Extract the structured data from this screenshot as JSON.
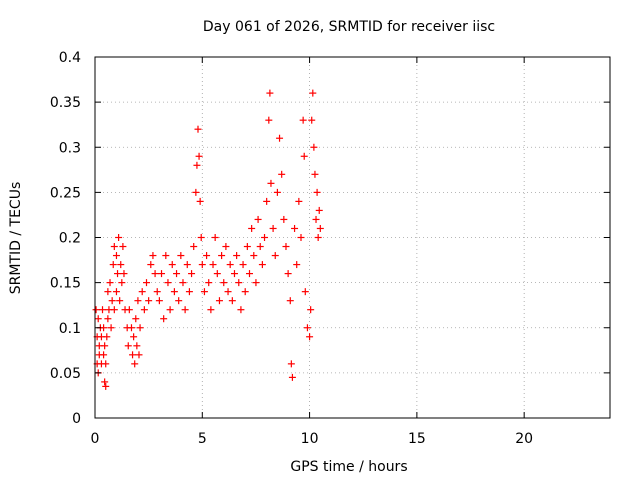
{
  "chart_data": {
    "type": "scatter",
    "title": "Day 061 of 2026, SRMTID for receiver iisc",
    "xlabel": "GPS time / hours",
    "ylabel": "SRMTID / TECUs",
    "xlim": [
      0,
      24
    ],
    "ylim": [
      0,
      0.4
    ],
    "grid": true,
    "marker": "+",
    "color": "#ff0000",
    "x_ticks": [
      0,
      5,
      10,
      15,
      20
    ],
    "x_tick_labels": [
      "0",
      "5",
      "10",
      "15",
      "20"
    ],
    "y_ticks": [
      0,
      0.05,
      0.1,
      0.15,
      0.2,
      0.25,
      0.3,
      0.35,
      0.4
    ],
    "y_tick_labels": [
      "0",
      "0.05",
      "0.1",
      "0.15",
      "0.2",
      "0.25",
      "0.3",
      "0.35",
      "0.4"
    ],
    "series": [
      {
        "name": "SRMTID",
        "points": [
          [
            0.05,
            0.12
          ],
          [
            0.1,
            0.06
          ],
          [
            0.1,
            0.09
          ],
          [
            0.15,
            0.05
          ],
          [
            0.15,
            0.11
          ],
          [
            0.2,
            0.07
          ],
          [
            0.2,
            0.08
          ],
          [
            0.25,
            0.1
          ],
          [
            0.3,
            0.06
          ],
          [
            0.3,
            0.09
          ],
          [
            0.35,
            0.12
          ],
          [
            0.4,
            0.07
          ],
          [
            0.4,
            0.1
          ],
          [
            0.45,
            0.04
          ],
          [
            0.45,
            0.08
          ],
          [
            0.5,
            0.035
          ],
          [
            0.5,
            0.06
          ],
          [
            0.55,
            0.09
          ],
          [
            0.6,
            0.11
          ],
          [
            0.6,
            0.14
          ],
          [
            0.65,
            0.12
          ],
          [
            0.7,
            0.15
          ],
          [
            0.75,
            0.1
          ],
          [
            0.8,
            0.13
          ],
          [
            0.85,
            0.17
          ],
          [
            0.9,
            0.12
          ],
          [
            0.9,
            0.19
          ],
          [
            1.0,
            0.14
          ],
          [
            1.0,
            0.18
          ],
          [
            1.05,
            0.16
          ],
          [
            1.1,
            0.2
          ],
          [
            1.15,
            0.13
          ],
          [
            1.2,
            0.17
          ],
          [
            1.25,
            0.15
          ],
          [
            1.3,
            0.19
          ],
          [
            1.35,
            0.16
          ],
          [
            1.4,
            0.12
          ],
          [
            1.5,
            0.1
          ],
          [
            1.55,
            0.08
          ],
          [
            1.6,
            0.12
          ],
          [
            1.7,
            0.1
          ],
          [
            1.75,
            0.07
          ],
          [
            1.8,
            0.09
          ],
          [
            1.85,
            0.06
          ],
          [
            1.9,
            0.11
          ],
          [
            1.95,
            0.08
          ],
          [
            2.0,
            0.13
          ],
          [
            2.05,
            0.07
          ],
          [
            2.1,
            0.1
          ],
          [
            2.2,
            0.14
          ],
          [
            2.3,
            0.12
          ],
          [
            2.4,
            0.15
          ],
          [
            2.5,
            0.13
          ],
          [
            2.6,
            0.17
          ],
          [
            2.7,
            0.18
          ],
          [
            2.8,
            0.16
          ],
          [
            2.9,
            0.14
          ],
          [
            3.0,
            0.13
          ],
          [
            3.1,
            0.16
          ],
          [
            3.2,
            0.11
          ],
          [
            3.3,
            0.18
          ],
          [
            3.4,
            0.15
          ],
          [
            3.5,
            0.12
          ],
          [
            3.6,
            0.17
          ],
          [
            3.7,
            0.14
          ],
          [
            3.8,
            0.16
          ],
          [
            3.9,
            0.13
          ],
          [
            4.0,
            0.18
          ],
          [
            4.1,
            0.15
          ],
          [
            4.2,
            0.12
          ],
          [
            4.3,
            0.17
          ],
          [
            4.4,
            0.14
          ],
          [
            4.5,
            0.16
          ],
          [
            4.6,
            0.19
          ],
          [
            4.7,
            0.25
          ],
          [
            4.75,
            0.28
          ],
          [
            4.8,
            0.32
          ],
          [
            4.85,
            0.29
          ],
          [
            4.9,
            0.24
          ],
          [
            4.95,
            0.2
          ],
          [
            5.0,
            0.17
          ],
          [
            5.1,
            0.14
          ],
          [
            5.2,
            0.18
          ],
          [
            5.3,
            0.15
          ],
          [
            5.4,
            0.12
          ],
          [
            5.5,
            0.17
          ],
          [
            5.6,
            0.2
          ],
          [
            5.7,
            0.16
          ],
          [
            5.8,
            0.13
          ],
          [
            5.9,
            0.18
          ],
          [
            6.0,
            0.15
          ],
          [
            6.1,
            0.19
          ],
          [
            6.2,
            0.14
          ],
          [
            6.3,
            0.17
          ],
          [
            6.4,
            0.13
          ],
          [
            6.5,
            0.16
          ],
          [
            6.6,
            0.18
          ],
          [
            6.7,
            0.15
          ],
          [
            6.8,
            0.12
          ],
          [
            6.9,
            0.17
          ],
          [
            7.0,
            0.14
          ],
          [
            7.1,
            0.19
          ],
          [
            7.2,
            0.16
          ],
          [
            7.3,
            0.21
          ],
          [
            7.4,
            0.18
          ],
          [
            7.5,
            0.15
          ],
          [
            7.6,
            0.22
          ],
          [
            7.7,
            0.19
          ],
          [
            7.8,
            0.17
          ],
          [
            7.9,
            0.2
          ],
          [
            8.0,
            0.24
          ],
          [
            8.1,
            0.33
          ],
          [
            8.15,
            0.36
          ],
          [
            8.2,
            0.26
          ],
          [
            8.3,
            0.21
          ],
          [
            8.4,
            0.18
          ],
          [
            8.5,
            0.25
          ],
          [
            8.6,
            0.31
          ],
          [
            8.7,
            0.27
          ],
          [
            8.8,
            0.22
          ],
          [
            8.9,
            0.19
          ],
          [
            9.0,
            0.16
          ],
          [
            9.1,
            0.13
          ],
          [
            9.15,
            0.06
          ],
          [
            9.2,
            0.045
          ],
          [
            9.3,
            0.21
          ],
          [
            9.4,
            0.17
          ],
          [
            9.5,
            0.24
          ],
          [
            9.6,
            0.2
          ],
          [
            9.7,
            0.33
          ],
          [
            9.75,
            0.29
          ],
          [
            9.8,
            0.14
          ],
          [
            9.9,
            0.1
          ],
          [
            10.0,
            0.09
          ],
          [
            10.05,
            0.12
          ],
          [
            10.1,
            0.33
          ],
          [
            10.15,
            0.36
          ],
          [
            10.2,
            0.3
          ],
          [
            10.25,
            0.27
          ],
          [
            10.3,
            0.22
          ],
          [
            10.35,
            0.25
          ],
          [
            10.4,
            0.2
          ],
          [
            10.45,
            0.23
          ],
          [
            10.5,
            0.21
          ]
        ]
      }
    ]
  }
}
